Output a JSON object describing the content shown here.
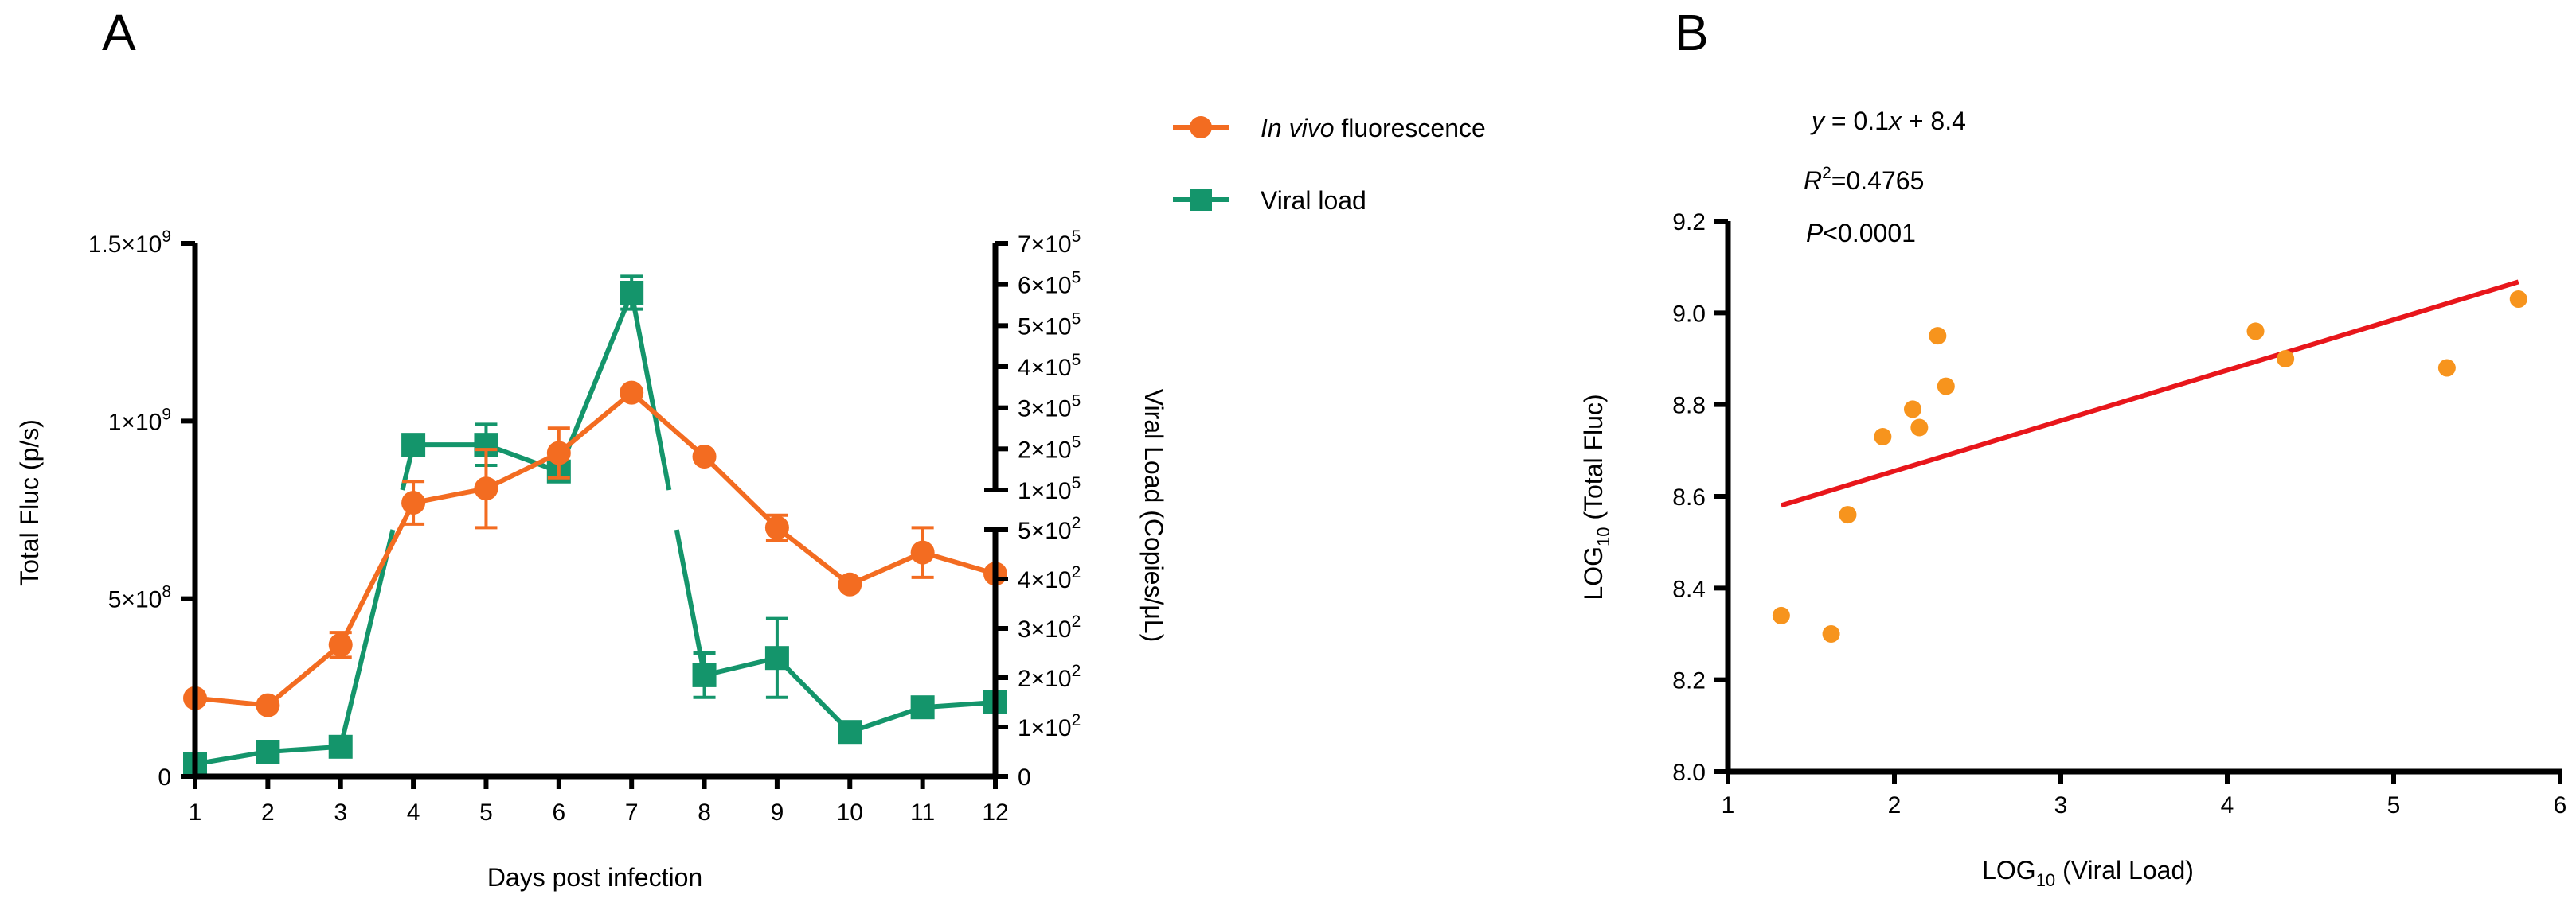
{
  "panels": {
    "a": "A",
    "b": "B"
  },
  "legend": [
    {
      "prefix": "In vivo",
      "suffix": " fluorescence",
      "color": "#F36C21",
      "marker": "circle"
    },
    {
      "prefix": "",
      "suffix": "Viral load",
      "color": "#14956B",
      "marker": "square"
    }
  ],
  "stats": {
    "eq": {
      "y": "y",
      "mid": " = 0.1",
      "x": "x",
      "rest": " + 8.4"
    },
    "r2": {
      "r": "R",
      "sup": "2",
      "rest": "=0.4765"
    },
    "p": {
      "p": "P",
      "rest": "<0.0001"
    }
  },
  "colors": {
    "orange": "#F36C21",
    "green": "#14956B",
    "fit": "#E8161B",
    "scatter": "#F7941D"
  },
  "chart_data": [
    {
      "id": "A",
      "type": "line",
      "xlabel": "Days post infection",
      "ylabel": "Total Fluc (p/s)",
      "y2label": "Viral Load (Copies/μL)",
      "categories": [
        "1",
        "2",
        "3",
        "4",
        "5",
        "6",
        "7",
        "8",
        "9",
        "10",
        "11",
        "12"
      ],
      "y_ticks": [
        {
          "value": 0,
          "base": "0",
          "exp": ""
        },
        {
          "value": 500000000,
          "base": "5×10",
          "exp": "8"
        },
        {
          "value": 1000000000,
          "base": "1×10",
          "exp": "9"
        },
        {
          "value": 1500000000,
          "base": "1.5×10",
          "exp": "9"
        }
      ],
      "ylim": [
        0,
        1500000000
      ],
      "y2_axis": {
        "type": "broken",
        "lower_range": [
          0,
          500
        ],
        "upper_range": [
          100000,
          700000
        ],
        "lower_ticks": [
          {
            "value": 0,
            "base": "0",
            "exp": ""
          },
          {
            "value": 100,
            "base": "1×10",
            "exp": "2"
          },
          {
            "value": 200,
            "base": "2×10",
            "exp": "2"
          },
          {
            "value": 300,
            "base": "3×10",
            "exp": "2"
          },
          {
            "value": 400,
            "base": "4×10",
            "exp": "2"
          },
          {
            "value": 500,
            "base": "5×10",
            "exp": "2"
          }
        ],
        "upper_ticks": [
          {
            "value": 100000,
            "base": "1×10",
            "exp": "5"
          },
          {
            "value": 200000,
            "base": "2×10",
            "exp": "5"
          },
          {
            "value": 300000,
            "base": "3×10",
            "exp": "5"
          },
          {
            "value": 400000,
            "base": "4×10",
            "exp": "5"
          },
          {
            "value": 500000,
            "base": "5×10",
            "exp": "5"
          },
          {
            "value": 600000,
            "base": "6×10",
            "exp": "5"
          },
          {
            "value": 700000,
            "base": "7×10",
            "exp": "5"
          }
        ]
      },
      "series": [
        {
          "name": "In vivo fluorescence",
          "axis": "left",
          "marker": "circle",
          "values": [
            220000000,
            200000000,
            370000000,
            770000000,
            810000000,
            910000000,
            1080000000,
            900000000,
            700000000,
            540000000,
            630000000,
            570000000
          ],
          "errors": [
            0,
            0,
            35000000,
            60000000,
            110000000,
            70000000,
            0,
            0,
            35000000,
            0,
            70000000,
            0
          ]
        },
        {
          "name": "Viral load",
          "axis": "right",
          "marker": "square",
          "values": [
            25,
            50,
            60,
            210000,
            210000,
            145000,
            580000,
            205,
            240,
            90,
            140,
            150
          ],
          "errors": [
            0,
            0,
            0,
            0,
            50000,
            20000,
            40000,
            45,
            80,
            0,
            0,
            15
          ]
        }
      ]
    },
    {
      "id": "B",
      "type": "scatter",
      "xlabel": {
        "pre": "LOG",
        "sub": "10",
        "post": " (Viral Load)"
      },
      "ylabel": {
        "pre": "LOG",
        "sub": "10",
        "post": " (Total Fluc)"
      },
      "xlim": [
        1,
        6
      ],
      "ylim": [
        8.0,
        9.2
      ],
      "x_ticks": [
        "1",
        "2",
        "3",
        "4",
        "5",
        "6"
      ],
      "y_ticks": [
        "8.0",
        "8.2",
        "8.4",
        "8.6",
        "8.8",
        "9.0",
        "9.2"
      ],
      "x": [
        1.32,
        1.62,
        1.72,
        1.93,
        2.11,
        2.15,
        2.26,
        2.31,
        4.17,
        4.35,
        5.32,
        5.75
      ],
      "y": [
        8.34,
        8.3,
        8.56,
        8.73,
        8.79,
        8.75,
        8.95,
        8.84,
        8.96,
        8.9,
        8.88,
        9.03
      ],
      "fit": {
        "slope": 0.11,
        "intercept": 8.435,
        "x_range": [
          1.32,
          5.75
        ]
      }
    }
  ]
}
